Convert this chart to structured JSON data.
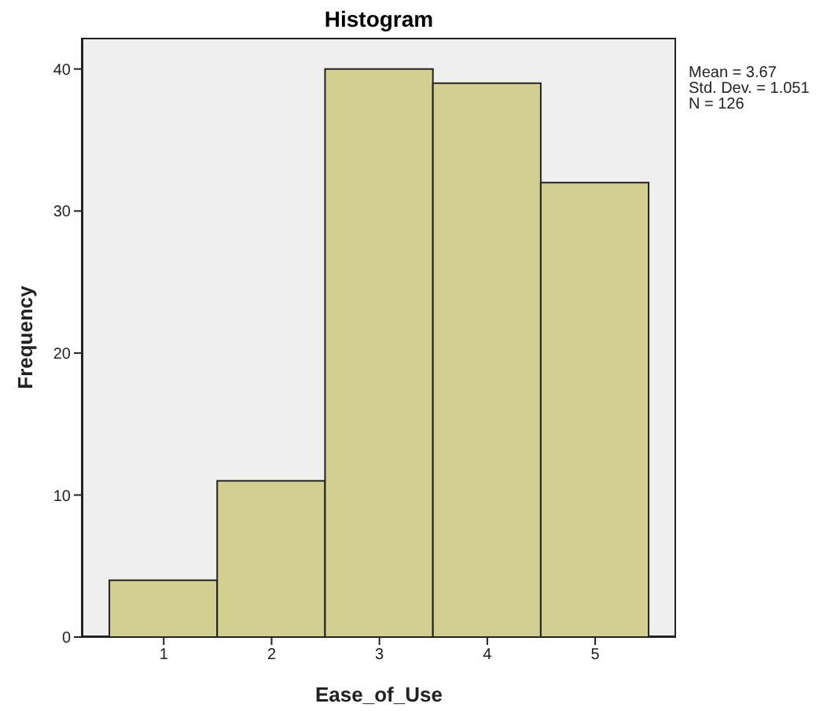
{
  "chart_data": {
    "type": "histogram",
    "title": "Histogram",
    "xlabel": "Ease_of_Use",
    "ylabel": "Frequency",
    "bins": [
      0.5,
      1.5,
      2.5,
      3.5,
      4.5,
      5.5
    ],
    "values": [
      4,
      11,
      40,
      39,
      32
    ],
    "color": "#d2cf90",
    "xlim": [
      0.24,
      5.75
    ],
    "xticks": [
      1,
      2,
      3,
      4,
      5
    ],
    "ylim": [
      0,
      42.2
    ],
    "yticks": [
      0,
      10,
      20,
      30,
      40
    ],
    "annotations": [
      "Mean = 3.67",
      "Std. Dev. = 1.051",
      "N = 126"
    ]
  }
}
